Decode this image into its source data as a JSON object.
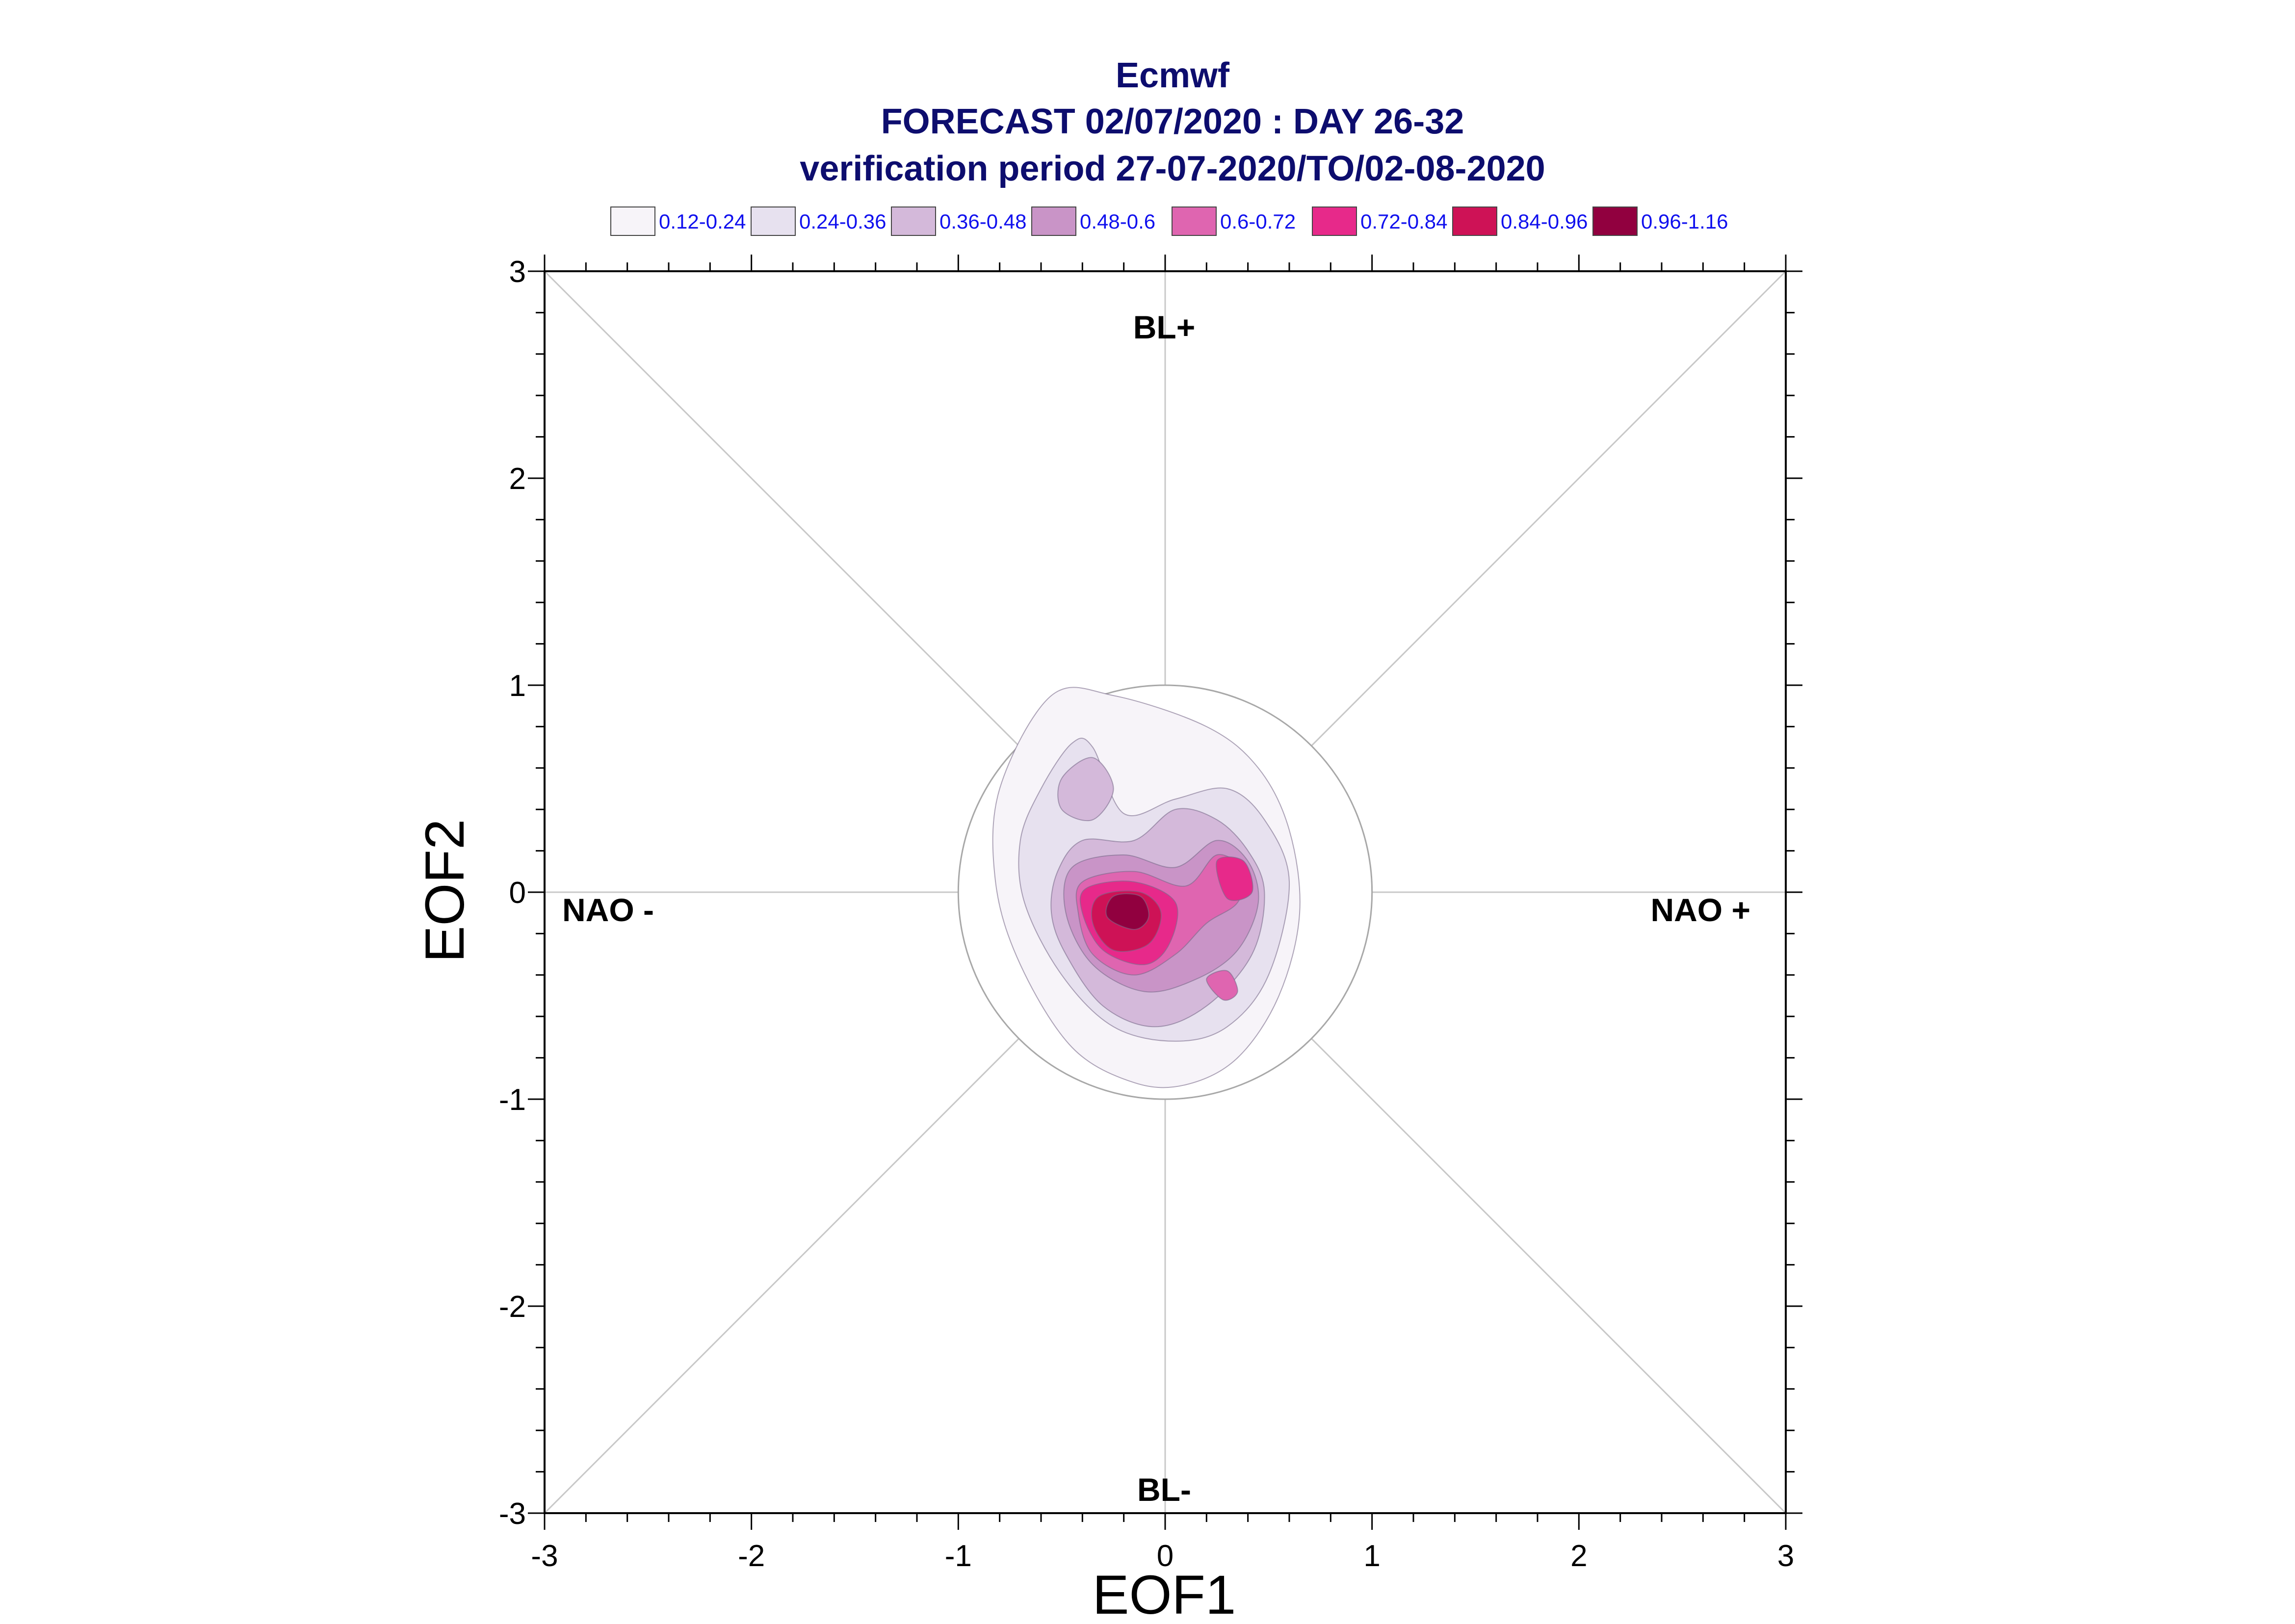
{
  "chart_data": {
    "type": "heatmap",
    "subtype": "filled-contour density",
    "title_lines": [
      "Ecmwf",
      "FORECAST 02/07/2020 : DAY 26-32",
      "verification period 27-07-2020/TO/02-08-2020"
    ],
    "xlabel": "EOF1",
    "ylabel": "EOF2",
    "xlim": [
      -3,
      3
    ],
    "ylim": [
      -3,
      3
    ],
    "xticks": [
      -3,
      -2,
      -1,
      0,
      1,
      2,
      3
    ],
    "yticks": [
      -3,
      -2,
      -1,
      0,
      1,
      2,
      3
    ],
    "xtick_labels": [
      "-3",
      "-2",
      "-1",
      "0",
      "1",
      "2",
      "3"
    ],
    "ytick_labels": [
      "-3",
      "-2",
      "-1",
      "0",
      "1",
      "2",
      "3"
    ],
    "grid": false,
    "reference_circle_radius": 1,
    "region_labels": {
      "top": "BL+",
      "bottom": "BL-",
      "left": "NAO -",
      "right": "NAO +"
    },
    "legend": {
      "placement": "top",
      "entries": [
        {
          "label": "0.12-0.24",
          "color": "#f7f4f9"
        },
        {
          "label": "0.24-0.36",
          "color": "#e7e1ef"
        },
        {
          "label": "0.36-0.48",
          "color": "#d4b9da"
        },
        {
          "label": "0.48-0.6",
          "color": "#c994c7"
        },
        {
          "label": "0.6-0.72",
          "color": "#df65b0"
        },
        {
          "label": "0.72-0.84",
          "color": "#e7298a"
        },
        {
          "label": "0.84-0.96",
          "color": "#ce1256"
        },
        {
          "label": "0.96-1.16",
          "color": "#91003f"
        }
      ]
    },
    "contours": [
      {
        "level": "0.12-0.24",
        "x": [
          -0.8,
          -0.55,
          -0.25,
          0.2,
          0.45,
          0.6,
          0.65,
          0.55,
          0.35,
          0.1,
          -0.15,
          -0.45,
          -0.7,
          -0.82
        ],
        "y": [
          0.5,
          0.95,
          0.95,
          0.8,
          0.6,
          0.3,
          -0.1,
          -0.5,
          -0.8,
          -0.93,
          -0.92,
          -0.75,
          -0.35,
          0.05
        ]
      },
      {
        "level": "0.24-0.36",
        "x": [
          -0.6,
          -0.45,
          -0.35,
          -0.2,
          0.05,
          0.3,
          0.48,
          0.6,
          0.5,
          0.3,
          0.05,
          -0.25,
          -0.5,
          -0.68,
          -0.7
        ],
        "y": [
          0.5,
          0.72,
          0.7,
          0.38,
          0.45,
          0.5,
          0.35,
          0.05,
          -0.4,
          -0.65,
          -0.72,
          -0.65,
          -0.4,
          -0.05,
          0.25
        ]
      },
      {
        "level": "0.36-0.48",
        "x": [
          -0.5,
          -0.35,
          -0.25,
          -0.35,
          -0.5
        ],
        "y": [
          0.55,
          0.65,
          0.5,
          0.35,
          0.4
        ]
      },
      {
        "level": "0.36-0.48",
        "x": [
          -0.52,
          -0.4,
          -0.15,
          0.05,
          0.25,
          0.4,
          0.48,
          0.42,
          0.2,
          -0.05,
          -0.3,
          -0.48,
          -0.55
        ],
        "y": [
          0.1,
          0.25,
          0.25,
          0.4,
          0.35,
          0.2,
          0.0,
          -0.3,
          -0.55,
          -0.65,
          -0.55,
          -0.3,
          -0.1
        ]
      },
      {
        "level": "0.48-0.6",
        "x": [
          -0.45,
          -0.2,
          0.05,
          0.25,
          0.4,
          0.45,
          0.35,
          0.15,
          -0.1,
          -0.35,
          -0.48
        ],
        "y": [
          0.12,
          0.18,
          0.12,
          0.25,
          0.15,
          -0.05,
          -0.28,
          -0.42,
          -0.48,
          -0.35,
          -0.1
        ]
      },
      {
        "level": "0.6-0.72",
        "x": [
          -0.4,
          -0.15,
          0.1,
          0.25,
          0.38,
          0.35,
          0.2,
          0.05,
          -0.15,
          -0.35,
          -0.42
        ],
        "y": [
          0.05,
          0.1,
          0.03,
          0.18,
          0.1,
          -0.05,
          -0.15,
          -0.3,
          -0.4,
          -0.3,
          -0.1
        ]
      },
      {
        "level": "0.6-0.72",
        "x": [
          0.2,
          0.3,
          0.35,
          0.28
        ],
        "y": [
          -0.42,
          -0.38,
          -0.48,
          -0.52
        ]
      },
      {
        "level": "0.72-0.84",
        "x": [
          -0.38,
          -0.15,
          0.05,
          0.02,
          -0.1,
          -0.3,
          -0.4
        ],
        "y": [
          0.02,
          0.05,
          -0.05,
          -0.25,
          -0.35,
          -0.28,
          -0.1
        ]
      },
      {
        "level": "0.72-0.84",
        "x": [
          0.25,
          0.38,
          0.42,
          0.3
        ],
        "y": [
          0.15,
          0.15,
          0.0,
          -0.03
        ]
      },
      {
        "level": "0.84-0.96",
        "x": [
          -0.32,
          -0.12,
          -0.02,
          -0.08,
          -0.25,
          -0.35
        ],
        "y": [
          -0.02,
          0.0,
          -0.1,
          -0.25,
          -0.28,
          -0.15
        ]
      },
      {
        "level": "0.96-1.16",
        "x": [
          -0.25,
          -0.12,
          -0.08,
          -0.15,
          -0.28
        ],
        "y": [
          -0.02,
          -0.02,
          -0.12,
          -0.18,
          -0.12
        ]
      }
    ]
  }
}
